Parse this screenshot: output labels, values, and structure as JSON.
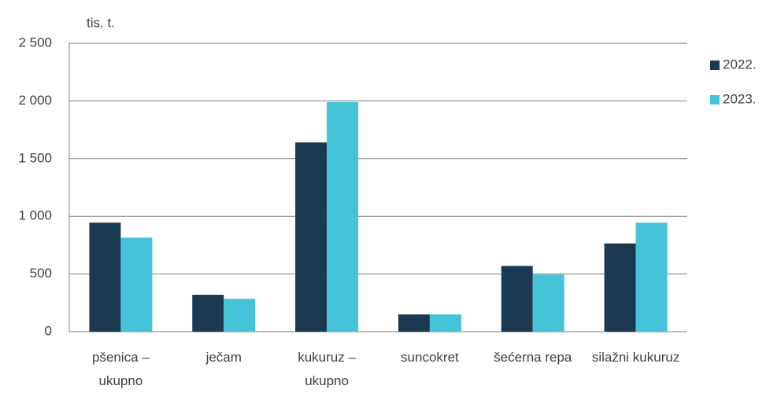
{
  "chart_data": {
    "type": "bar",
    "y_unit_label": "tis. t.",
    "categories": [
      "pšenica – ukupno",
      "ječam",
      "kukuruz – ukupno",
      "suncokret",
      "šećerna repa",
      "silažni kukuruz"
    ],
    "series": [
      {
        "name": "2022.",
        "color": "#1b3a52",
        "values": [
          945,
          320,
          1640,
          150,
          570,
          765
        ]
      },
      {
        "name": "2023.",
        "color": "#45c3d8",
        "values": [
          815,
          285,
          1990,
          150,
          495,
          945
        ]
      }
    ],
    "ylim": [
      0,
      2500
    ],
    "yticks": [
      0,
      500,
      {
        "value": 1000,
        "label": "1 000"
      },
      {
        "value": 1500,
        "label": "1 500"
      },
      {
        "value": 2000,
        "label": "2 000"
      },
      {
        "value": 2500,
        "label": "2 500"
      }
    ],
    "grid": true,
    "legend": "right"
  }
}
